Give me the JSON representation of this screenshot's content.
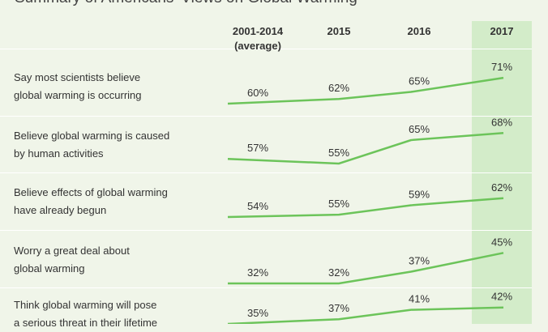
{
  "title": "Summary of Americans' Views on Global Warming",
  "chart_data": {
    "type": "line",
    "columns": [
      {
        "label": "2001-2014",
        "sublabel": "(average)"
      },
      {
        "label": "2015",
        "sublabel": ""
      },
      {
        "label": "2016",
        "sublabel": ""
      },
      {
        "label": "2017",
        "sublabel": ""
      }
    ],
    "highlighted_column": "2017",
    "rows": [
      {
        "label_lines": [
          "Say most scientists believe",
          "global warming is occurring"
        ],
        "values": [
          60,
          62,
          65,
          71
        ]
      },
      {
        "label_lines": [
          "Believe global warming is caused",
          "by human activities"
        ],
        "values": [
          57,
          55,
          65,
          68
        ]
      },
      {
        "label_lines": [
          "Believe effects of global warming",
          "have already begun"
        ],
        "values": [
          54,
          55,
          59,
          62
        ]
      },
      {
        "label_lines": [
          "Worry a great deal about",
          "global warming"
        ],
        "values": [
          32,
          32,
          37,
          45
        ]
      },
      {
        "label_lines": [
          "Think global warming will pose",
          "a serious threat in their lifetime"
        ],
        "values": [
          35,
          37,
          41,
          42
        ]
      }
    ],
    "value_suffix": "%",
    "colors": {
      "line": "#6cc45a",
      "highlight": "#d3ecc9",
      "background": "#f0f5e9"
    }
  }
}
